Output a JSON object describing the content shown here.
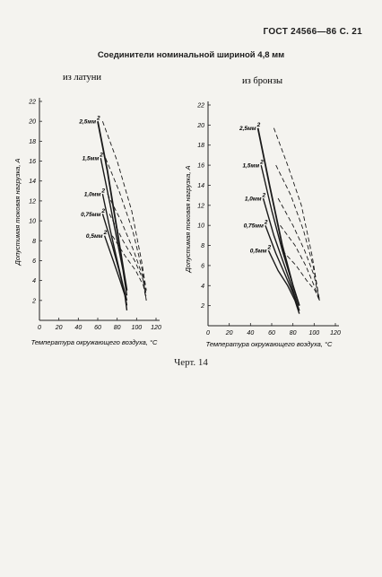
{
  "header": "ГОСТ 24566—86 С. 21",
  "title": "Соединители номинальной шириной 4,8 мм",
  "caption": "Черт. 14",
  "chart_data": [
    {
      "type": "line",
      "subtitle": "из латуни",
      "xlabel": "Температура окружающего воздуха, °C",
      "ylabel": "Допустимая токовая нагрузка, A",
      "xlim": [
        0,
        120
      ],
      "ylim": [
        0,
        22
      ],
      "x_ticks": [
        "0",
        "20",
        "40",
        "60",
        "80",
        "100",
        "120"
      ],
      "y_ticks": [
        "2",
        "4",
        "6",
        "8",
        "10",
        "12",
        "14",
        "16",
        "18",
        "20",
        "22"
      ],
      "grid": false,
      "series": [
        {
          "name": "2,5мм²",
          "label": "2,5мм",
          "sup": "2",
          "label_y": 20,
          "style": "solid",
          "x": [
            60,
            70,
            80,
            85,
            90
          ],
          "y": [
            20,
            15,
            9,
            6,
            3
          ]
        },
        {
          "name": "1,5мм²",
          "label": "1,5мм",
          "sup": "2",
          "label_y": 16.3,
          "style": "solid",
          "x": [
            63,
            72,
            80,
            86,
            90
          ],
          "y": [
            16.3,
            12,
            8,
            5,
            2.5
          ]
        },
        {
          "name": "1,0мм²",
          "label": "1,0мм",
          "sup": "2",
          "label_y": 12.7,
          "style": "solid",
          "x": [
            65,
            73,
            80,
            86,
            90
          ],
          "y": [
            12.7,
            9,
            6,
            3.5,
            2
          ]
        },
        {
          "name": "0,75мм²",
          "label": "0,75мм",
          "sup": "2",
          "label_y": 10.7,
          "style": "solid",
          "x": [
            65,
            75,
            82,
            87,
            90
          ],
          "y": [
            10.7,
            7.5,
            5,
            3,
            1.5
          ]
        },
        {
          "name": "0,5мм²",
          "label": "0,5мм",
          "sup": "2",
          "label_y": 8.5,
          "style": "solid",
          "x": [
            67,
            76,
            83,
            88,
            90
          ],
          "y": [
            8.5,
            6,
            4,
            2.5,
            1
          ]
        },
        {
          "name": "",
          "style": "dashed",
          "x": [
            65,
            80,
            95,
            105,
            110
          ],
          "y": [
            20,
            16,
            11,
            6,
            3
          ]
        },
        {
          "name": "",
          "style": "dashed",
          "x": [
            68,
            82,
            96,
            106,
            110
          ],
          "y": [
            16.3,
            13,
            9,
            5,
            2.5
          ]
        },
        {
          "name": "",
          "style": "dashed",
          "x": [
            70,
            84,
            97,
            106,
            110
          ],
          "y": [
            12.7,
            10,
            7,
            4.5,
            2
          ]
        },
        {
          "name": "",
          "style": "dashed",
          "x": [
            72,
            86,
            98,
            107,
            110
          ],
          "y": [
            10.7,
            8,
            6,
            4,
            2
          ]
        },
        {
          "name": "",
          "style": "dashed",
          "x": [
            75,
            88,
            99,
            107,
            110
          ],
          "y": [
            8.5,
            6.5,
            5,
            3.5,
            2
          ]
        }
      ]
    },
    {
      "type": "line",
      "subtitle": "из бронзы",
      "xlabel": "Температура окружающего воздуха, °C",
      "ylabel": "Допустимая токовая нагрузка, A",
      "xlim": [
        0,
        120
      ],
      "ylim": [
        0,
        22
      ],
      "x_ticks": [
        "0",
        "20",
        "40",
        "60",
        "80",
        "100",
        "120"
      ],
      "y_ticks": [
        "2",
        "4",
        "6",
        "8",
        "10",
        "12",
        "14",
        "16",
        "18",
        "20",
        "22"
      ],
      "grid": false,
      "series": [
        {
          "name": "2,5мм²",
          "label": "2,5мм",
          "sup": "2",
          "label_y": 19.7,
          "style": "solid",
          "x": [
            47,
            58,
            70,
            80,
            86
          ],
          "y": [
            19.7,
            14,
            8,
            4,
            2
          ]
        },
        {
          "name": "1,5мм²",
          "label": "1,5мм",
          "sup": "2",
          "label_y": 16,
          "style": "solid",
          "x": [
            50,
            60,
            70,
            80,
            86
          ],
          "y": [
            16,
            11.5,
            7.5,
            4,
            2
          ]
        },
        {
          "name": "1,0мм²",
          "label": "1,0мм",
          "sup": "2",
          "label_y": 12.7,
          "style": "solid",
          "x": [
            52,
            62,
            72,
            80,
            86
          ],
          "y": [
            12.7,
            9,
            6,
            3.5,
            1.5
          ]
        },
        {
          "name": "0,75мм²",
          "label": "0,75мм",
          "sup": "2",
          "label_y": 10,
          "style": "solid",
          "x": [
            54,
            64,
            73,
            81,
            86
          ],
          "y": [
            10,
            7.2,
            5,
            3,
            1.5
          ]
        },
        {
          "name": "0,5мм²",
          "label": "0,5мм",
          "sup": "2",
          "label_y": 7.5,
          "style": "solid",
          "x": [
            57,
            66,
            75,
            82,
            86
          ],
          "y": [
            7.5,
            5.5,
            4,
            2.5,
            1.2
          ]
        },
        {
          "name": "",
          "style": "dashed",
          "x": [
            62,
            75,
            88,
            98,
            105
          ],
          "y": [
            19.7,
            16,
            12,
            7,
            2.5
          ]
        },
        {
          "name": "",
          "style": "dashed",
          "x": [
            64,
            78,
            90,
            99,
            105
          ],
          "y": [
            16,
            13,
            9.5,
            6,
            2.5
          ]
        },
        {
          "name": "",
          "style": "dashed",
          "x": [
            66,
            80,
            91,
            100,
            105
          ],
          "y": [
            12.7,
            10,
            7.5,
            5,
            2.5
          ]
        },
        {
          "name": "",
          "style": "dashed",
          "x": [
            68,
            82,
            92,
            100,
            105
          ],
          "y": [
            10,
            8,
            6,
            4,
            2.5
          ]
        },
        {
          "name": "",
          "style": "dashed",
          "x": [
            70,
            83,
            93,
            101,
            105
          ],
          "y": [
            7.5,
            6,
            4.5,
            3.5,
            2.5
          ]
        }
      ]
    }
  ]
}
